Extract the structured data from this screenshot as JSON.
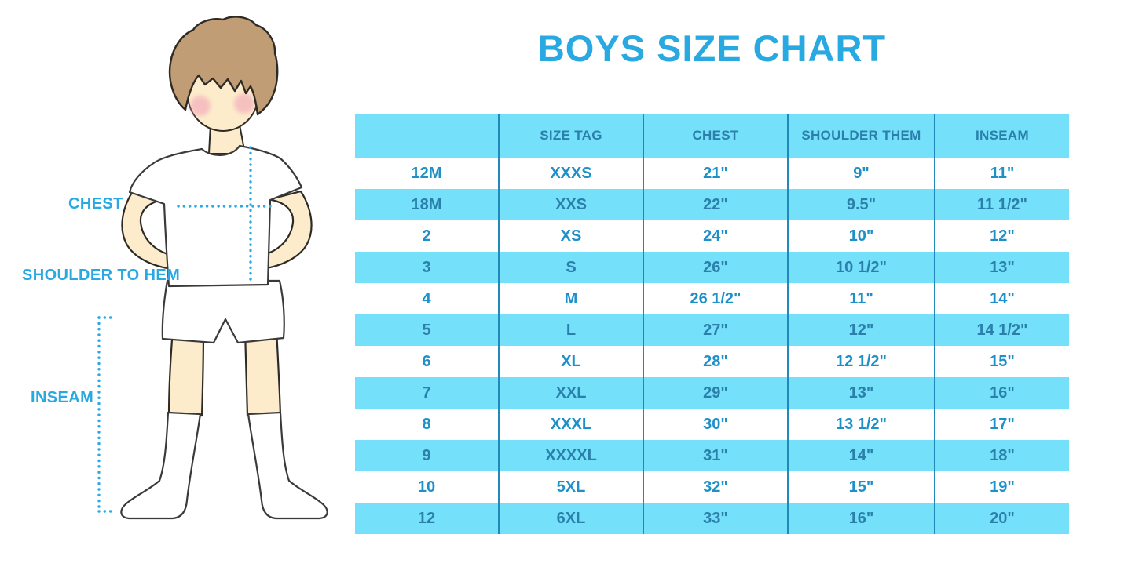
{
  "title": "BOYS SIZE CHART",
  "figure_labels": {
    "chest": "CHEST",
    "shoulder_to_hem": "SHOULDER TO HEM",
    "inseam": "INSEAM"
  },
  "chart_data": {
    "type": "table",
    "title": "BOYS SIZE CHART",
    "columns": [
      "",
      "SIZE TAG",
      "CHEST",
      "SHOULDER THEM",
      "INSEAM"
    ],
    "rows": [
      [
        "12M",
        "XXXS",
        "21\"",
        "9\"",
        "11\""
      ],
      [
        "18M",
        "XXS",
        "22\"",
        "9.5\"",
        "11 1/2\""
      ],
      [
        "2",
        "XS",
        "24\"",
        "10\"",
        "12\""
      ],
      [
        "3",
        "S",
        "26\"",
        "10 1/2\"",
        "13\""
      ],
      [
        "4",
        "M",
        "26 1/2\"",
        "11\"",
        "14\""
      ],
      [
        "5",
        "L",
        "27\"",
        "12\"",
        "14 1/2\""
      ],
      [
        "6",
        "XL",
        "28\"",
        "12 1/2\"",
        "15\""
      ],
      [
        "7",
        "XXL",
        "29\"",
        "13\"",
        "16\""
      ],
      [
        "8",
        "XXXL",
        "30\"",
        "13 1/2\"",
        "17\""
      ],
      [
        "9",
        "XXXXL",
        "31\"",
        "14\"",
        "18\""
      ],
      [
        "10",
        "5XL",
        "32\"",
        "15\"",
        "19\""
      ],
      [
        "12",
        "6XL",
        "33\"",
        "16\"",
        "20\""
      ]
    ],
    "row_striping": "alternating white and light blue, header light blue",
    "legend_position": "none",
    "grid": "vertical dividers only"
  },
  "colors": {
    "accent_blue": "#29a9e1",
    "stripe_blue": "#74e0fa",
    "divider_blue": "#2089ba",
    "text_on_white": "#1e90c8",
    "text_on_blue": "#2b80ab",
    "skin": "#fdeccb",
    "hair": "#c09d74",
    "blush": "#f2a9bb"
  }
}
